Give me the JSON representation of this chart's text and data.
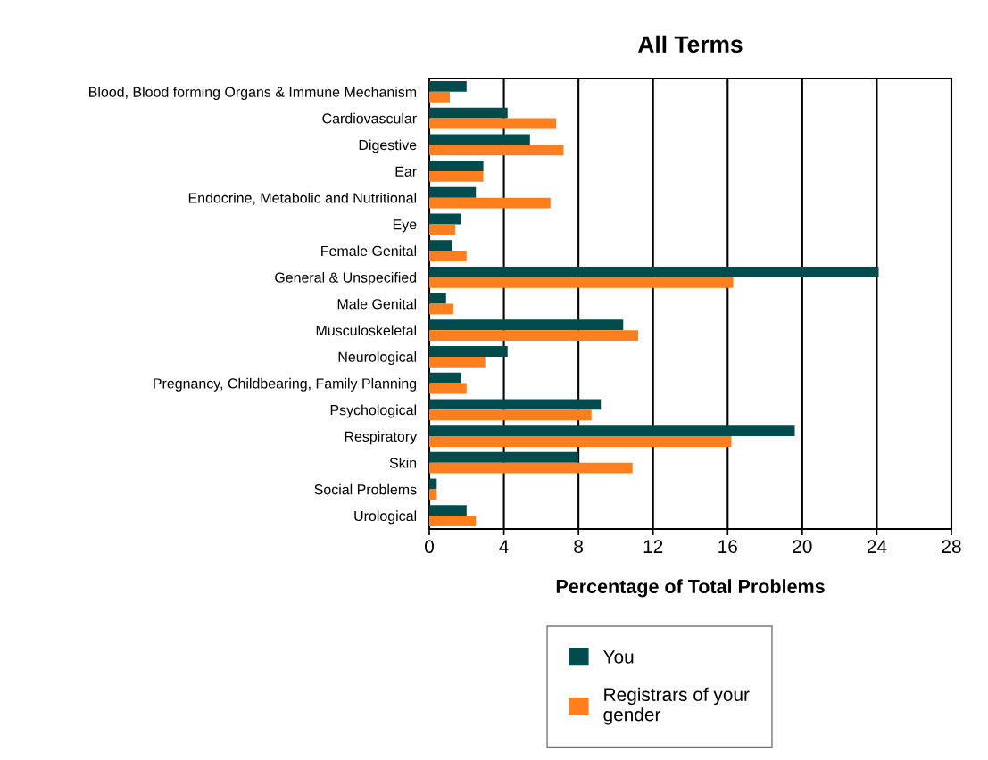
{
  "chart_data": {
    "type": "bar",
    "orientation": "horizontal",
    "title": "All Terms",
    "xlabel": "Percentage of Total Problems",
    "categories": [
      "Blood, Blood forming Organs & Immune Mechanism",
      "Cardiovascular",
      "Digestive",
      "Ear",
      "Endocrine, Metabolic and Nutritional",
      "Eye",
      "Female Genital",
      "General & Unspecified",
      "Male Genital",
      "Musculoskeletal",
      "Neurological",
      "Pregnancy, Childbearing, Family Planning",
      "Psychological",
      "Respiratory",
      "Skin",
      "Social Problems",
      "Urological"
    ],
    "series": [
      {
        "name": "You",
        "color": "#004c4c",
        "values": [
          2.0,
          4.2,
          5.4,
          2.9,
          2.5,
          1.7,
          1.2,
          24.1,
          0.9,
          10.4,
          4.2,
          1.7,
          9.2,
          19.6,
          8.0,
          0.4,
          2.0
        ]
      },
      {
        "name": "Registrars of your gender",
        "color": "#ff7f1f",
        "values": [
          1.1,
          6.8,
          7.2,
          2.9,
          6.5,
          1.4,
          2.0,
          16.3,
          1.3,
          11.2,
          3.0,
          2.0,
          8.7,
          16.2,
          10.9,
          0.4,
          2.5
        ]
      }
    ],
    "xlim": [
      0,
      28
    ],
    "xticks": [
      0,
      4,
      8,
      12,
      16,
      20,
      24,
      28
    ],
    "grid": "x",
    "legend": "bottom"
  }
}
